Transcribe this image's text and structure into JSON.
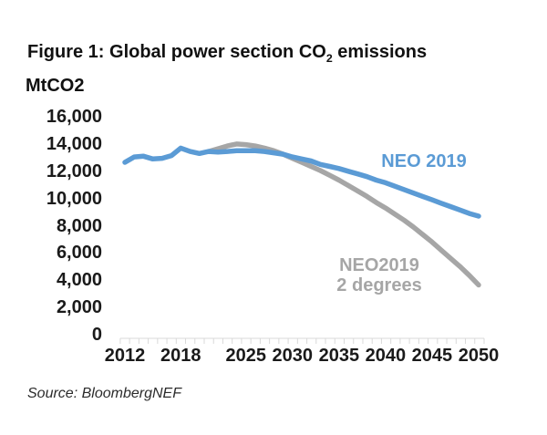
{
  "title": {
    "prefix": "Figure 1: Global power section CO",
    "sub": "2",
    "suffix": " emissions"
  },
  "unit_label": "MtCO2",
  "source": "Source: BloombergNEF",
  "legend": {
    "neo_label": "NEO 2019",
    "two_deg_line1": "NEO2019",
    "two_deg_line2": "2 degrees"
  },
  "colors": {
    "neo_blue": "#5b9bd5",
    "two_deg_gray": "#a6a6a6",
    "axis_gray": "#d9d9d9",
    "text": "#1a1a1a"
  },
  "chart_data": {
    "type": "line",
    "title": "Figure 1: Global power section CO2 emissions",
    "xlabel": "",
    "ylabel": "MtCO2",
    "ylim": [
      0,
      16000
    ],
    "xlim": [
      2011.5,
      2050.5
    ],
    "grid": false,
    "legend_position": "inline-labels",
    "y_ticks": [
      {
        "value": 0,
        "label": "0"
      },
      {
        "value": 2000,
        "label": "2,000"
      },
      {
        "value": 4000,
        "label": "4,000"
      },
      {
        "value": 6000,
        "label": "6,000"
      },
      {
        "value": 8000,
        "label": "8,000"
      },
      {
        "value": 10000,
        "label": "10,000"
      },
      {
        "value": 12000,
        "label": "12,000"
      },
      {
        "value": 14000,
        "label": "14,000"
      },
      {
        "value": 16000,
        "label": "16,000"
      }
    ],
    "x_ticks": [
      {
        "value": 2012,
        "label": "2012"
      },
      {
        "value": 2018,
        "label": "2018"
      },
      {
        "value": 2025,
        "label": "2025"
      },
      {
        "value": 2030,
        "label": "2030"
      },
      {
        "value": 2035,
        "label": "2035"
      },
      {
        "value": 2040,
        "label": "2040"
      },
      {
        "value": 2045,
        "label": "2045"
      },
      {
        "value": 2050,
        "label": "2050"
      }
    ],
    "x_minor_tick_every_years": 1,
    "series": [
      {
        "name": "NEO2019 2 degrees",
        "color": "#a6a6a6",
        "years": [
          2021,
          2022,
          2023,
          2024,
          2025,
          2026,
          2027,
          2028,
          2029,
          2030,
          2031,
          2032,
          2033,
          2034,
          2035,
          2036,
          2037,
          2038,
          2039,
          2040,
          2041,
          2042,
          2043,
          2044,
          2045,
          2046,
          2047,
          2048,
          2049,
          2050
        ],
        "values": [
          13450,
          13650,
          13850,
          14000,
          13950,
          13850,
          13700,
          13500,
          13250,
          12950,
          12650,
          12350,
          12050,
          11700,
          11350,
          10950,
          10550,
          10150,
          9700,
          9300,
          8850,
          8400,
          7900,
          7350,
          6800,
          6200,
          5600,
          5000,
          4350,
          3650
        ]
      },
      {
        "name": "NEO 2019",
        "color": "#5b9bd5",
        "years": [
          2012,
          2013,
          2014,
          2015,
          2016,
          2017,
          2018,
          2019,
          2020,
          2021,
          2022,
          2023,
          2024,
          2025,
          2026,
          2027,
          2028,
          2029,
          2030,
          2031,
          2032,
          2033,
          2034,
          2035,
          2036,
          2037,
          2038,
          2039,
          2040,
          2041,
          2042,
          2043,
          2044,
          2045,
          2046,
          2047,
          2048,
          2049,
          2050
        ],
        "values": [
          12650,
          13050,
          13100,
          12900,
          12950,
          13150,
          13700,
          13450,
          13300,
          13450,
          13400,
          13450,
          13500,
          13500,
          13500,
          13450,
          13350,
          13250,
          13050,
          12900,
          12750,
          12500,
          12350,
          12200,
          12000,
          11800,
          11600,
          11350,
          11150,
          10900,
          10650,
          10400,
          10150,
          9900,
          9650,
          9400,
          9150,
          8900,
          8700
        ]
      }
    ]
  }
}
